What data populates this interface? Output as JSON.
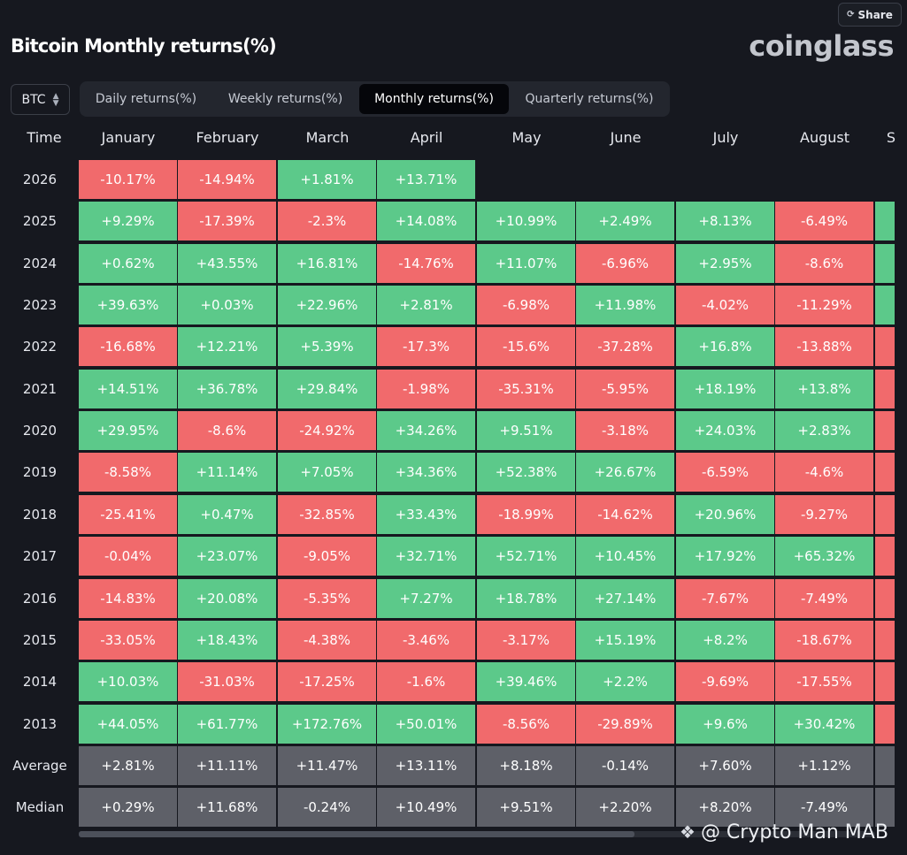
{
  "share": {
    "label": "Share",
    "icon": "share-icon"
  },
  "title": "Bitcoin Monthly returns(%)",
  "logo": "coinglass",
  "asset_select": {
    "value": "BTC",
    "icon": "chevron-updown-icon"
  },
  "tabs": [
    {
      "label": "Daily returns(%)",
      "active": false
    },
    {
      "label": "Weekly returns(%)",
      "active": false
    },
    {
      "label": "Monthly returns(%)",
      "active": true
    },
    {
      "label": "Quarterly returns(%)",
      "active": false
    }
  ],
  "colors": {
    "positive": "#5cc98a",
    "negative": "#f16a6c",
    "summary": "#5e6068",
    "background": "#16181f"
  },
  "table": {
    "time_header": "Time",
    "columns": [
      "January",
      "February",
      "March",
      "April",
      "May",
      "June",
      "July",
      "August",
      "S"
    ],
    "rows": [
      {
        "year": "2026",
        "values": [
          "-10.17%",
          "-14.94%",
          "+1.81%",
          "+13.71%"
        ]
      },
      {
        "year": "2025",
        "values": [
          "+9.29%",
          "-17.39%",
          "-2.3%",
          "+14.08%",
          "+10.99%",
          "+2.49%",
          "+8.13%",
          "-6.49%"
        ],
        "partial": "pos"
      },
      {
        "year": "2024",
        "values": [
          "+0.62%",
          "+43.55%",
          "+16.81%",
          "-14.76%",
          "+11.07%",
          "-6.96%",
          "+2.95%",
          "-8.6%"
        ],
        "partial": "pos"
      },
      {
        "year": "2023",
        "values": [
          "+39.63%",
          "+0.03%",
          "+22.96%",
          "+2.81%",
          "-6.98%",
          "+11.98%",
          "-4.02%",
          "-11.29%"
        ],
        "partial": "pos"
      },
      {
        "year": "2022",
        "values": [
          "-16.68%",
          "+12.21%",
          "+5.39%",
          "-17.3%",
          "-15.6%",
          "-37.28%",
          "+16.8%",
          "-13.88%"
        ],
        "partial": "neg"
      },
      {
        "year": "2021",
        "values": [
          "+14.51%",
          "+36.78%",
          "+29.84%",
          "-1.98%",
          "-35.31%",
          "-5.95%",
          "+18.19%",
          "+13.8%"
        ],
        "partial": "neg"
      },
      {
        "year": "2020",
        "values": [
          "+29.95%",
          "-8.6%",
          "-24.92%",
          "+34.26%",
          "+9.51%",
          "-3.18%",
          "+24.03%",
          "+2.83%"
        ],
        "partial": "neg"
      },
      {
        "year": "2019",
        "values": [
          "-8.58%",
          "+11.14%",
          "+7.05%",
          "+34.36%",
          "+52.38%",
          "+26.67%",
          "-6.59%",
          "-4.6%"
        ],
        "partial": "neg"
      },
      {
        "year": "2018",
        "values": [
          "-25.41%",
          "+0.47%",
          "-32.85%",
          "+33.43%",
          "-18.99%",
          "-14.62%",
          "+20.96%",
          "-9.27%"
        ],
        "partial": "neg"
      },
      {
        "year": "2017",
        "values": [
          "-0.04%",
          "+23.07%",
          "-9.05%",
          "+32.71%",
          "+52.71%",
          "+10.45%",
          "+17.92%",
          "+65.32%"
        ],
        "partial": "neg"
      },
      {
        "year": "2016",
        "values": [
          "-14.83%",
          "+20.08%",
          "-5.35%",
          "+7.27%",
          "+18.78%",
          "+27.14%",
          "-7.67%",
          "-7.49%"
        ],
        "partial": "neg"
      },
      {
        "year": "2015",
        "values": [
          "-33.05%",
          "+18.43%",
          "-4.38%",
          "-3.46%",
          "-3.17%",
          "+15.19%",
          "+8.2%",
          "-18.67%"
        ],
        "partial": "neg"
      },
      {
        "year": "2014",
        "values": [
          "+10.03%",
          "-31.03%",
          "-17.25%",
          "-1.6%",
          "+39.46%",
          "+2.2%",
          "-9.69%",
          "-17.55%"
        ],
        "partial": "neg"
      },
      {
        "year": "2013",
        "values": [
          "+44.05%",
          "+61.77%",
          "+172.76%",
          "+50.01%",
          "-8.56%",
          "-29.89%",
          "+9.6%",
          "+30.42%"
        ],
        "partial": "neg"
      }
    ],
    "average": {
      "label": "Average",
      "values": [
        "+2.81%",
        "+11.11%",
        "+11.47%",
        "+13.11%",
        "+8.18%",
        "-0.14%",
        "+7.60%",
        "+1.12%"
      ]
    },
    "median": {
      "label": "Median",
      "values": [
        "+0.29%",
        "+11.68%",
        "-0.24%",
        "+10.49%",
        "+9.51%",
        "+2.20%",
        "+8.20%",
        "-7.49%"
      ]
    }
  },
  "watermark": {
    "text": "@ Crypto Man MAB",
    "icon": "diamond-logo-icon"
  }
}
